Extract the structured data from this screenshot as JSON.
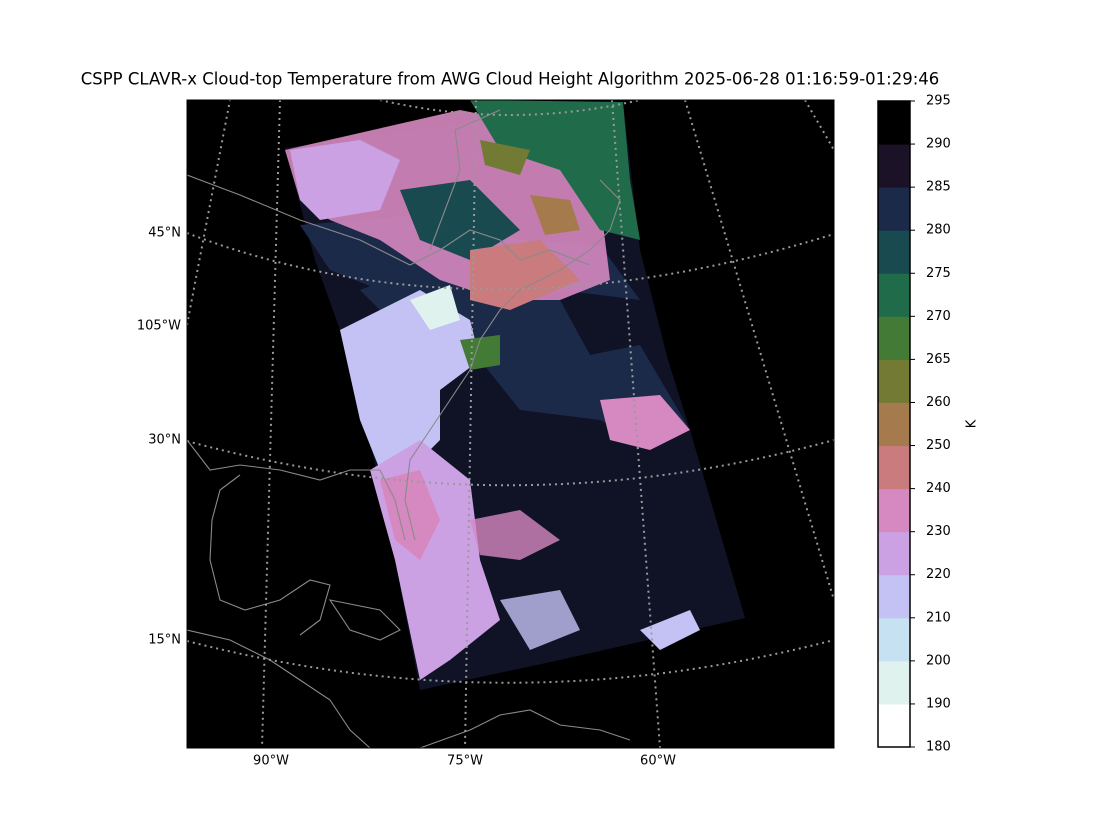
{
  "title": "CSPP CLAVR-x Cloud-top Temperature from AWG Cloud Height Algorithm 2025-06-28 01:16:59-01:29:46",
  "map": {
    "lat_labels": [
      "45°N",
      "30°N",
      "15°N"
    ],
    "left_lon_label": "105°W",
    "lon_labels": [
      "90°W",
      "75°W",
      "60°W"
    ]
  },
  "colorbar": {
    "label": "K",
    "boundaries": [
      180,
      190,
      200,
      210,
      220,
      230,
      240,
      250,
      260,
      265,
      270,
      275,
      280,
      285,
      290,
      295
    ],
    "colors": [
      "#ffffff",
      "#dff2ee",
      "#c6e1f1",
      "#c4c2f4",
      "#cba1e3",
      "#d688c0",
      "#c97b7d",
      "#a57a4d",
      "#727a33",
      "#437a35",
      "#206b4a",
      "#184a50",
      "#1c2a4a",
      "#1c1228",
      "#000000"
    ]
  }
}
